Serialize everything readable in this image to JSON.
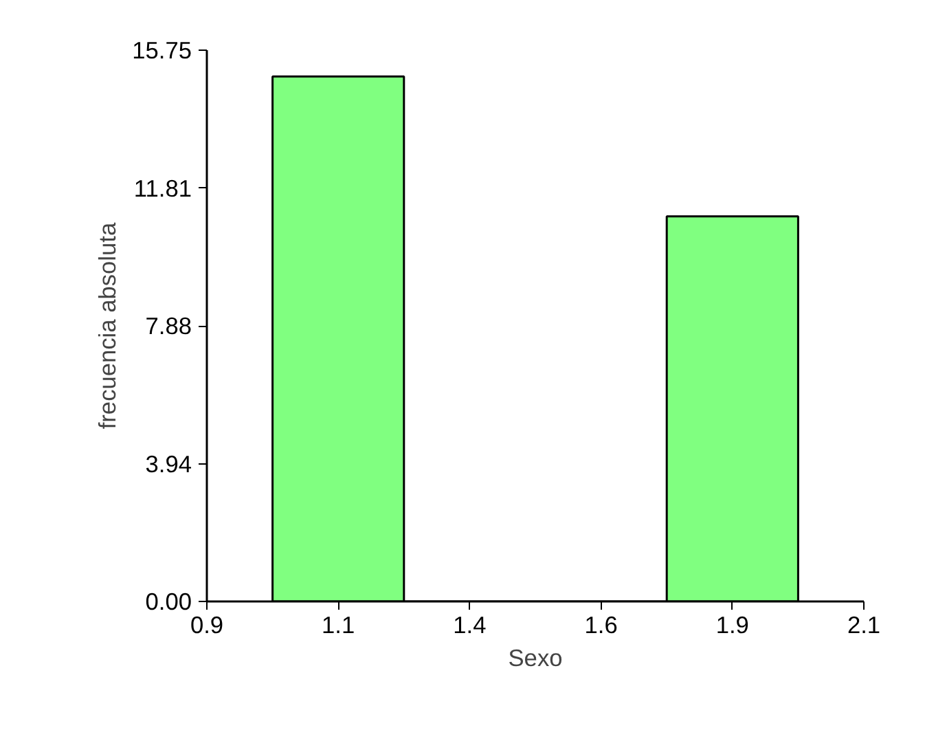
{
  "chart_data": {
    "type": "histogram",
    "xlabel": "Sexo",
    "ylabel": "frecuencia absoluta",
    "bins": [
      1.02,
      1.26,
      1.5,
      1.74,
      1.98
    ],
    "values": [
      15,
      0,
      0,
      11
    ],
    "color": "#80ff80",
    "xlim": [
      0.9,
      2.1
    ],
    "xticks": [
      {
        "value": 0.9,
        "label": "0.9"
      },
      {
        "value": 1.14,
        "label": "1.1"
      },
      {
        "value": 1.38,
        "label": "1.4"
      },
      {
        "value": 1.62,
        "label": "1.6"
      },
      {
        "value": 1.86,
        "label": "1.9"
      },
      {
        "value": 2.1,
        "label": "2.1"
      }
    ],
    "ylim": [
      0,
      15.75
    ],
    "yticks": [
      {
        "value": 0,
        "label": "0.00"
      },
      {
        "value": 3.9375,
        "label": "3.94"
      },
      {
        "value": 7.875,
        "label": "7.88"
      },
      {
        "value": 11.8125,
        "label": "11.81"
      },
      {
        "value": 15.75,
        "label": "15.75"
      }
    ],
    "grid": false
  }
}
